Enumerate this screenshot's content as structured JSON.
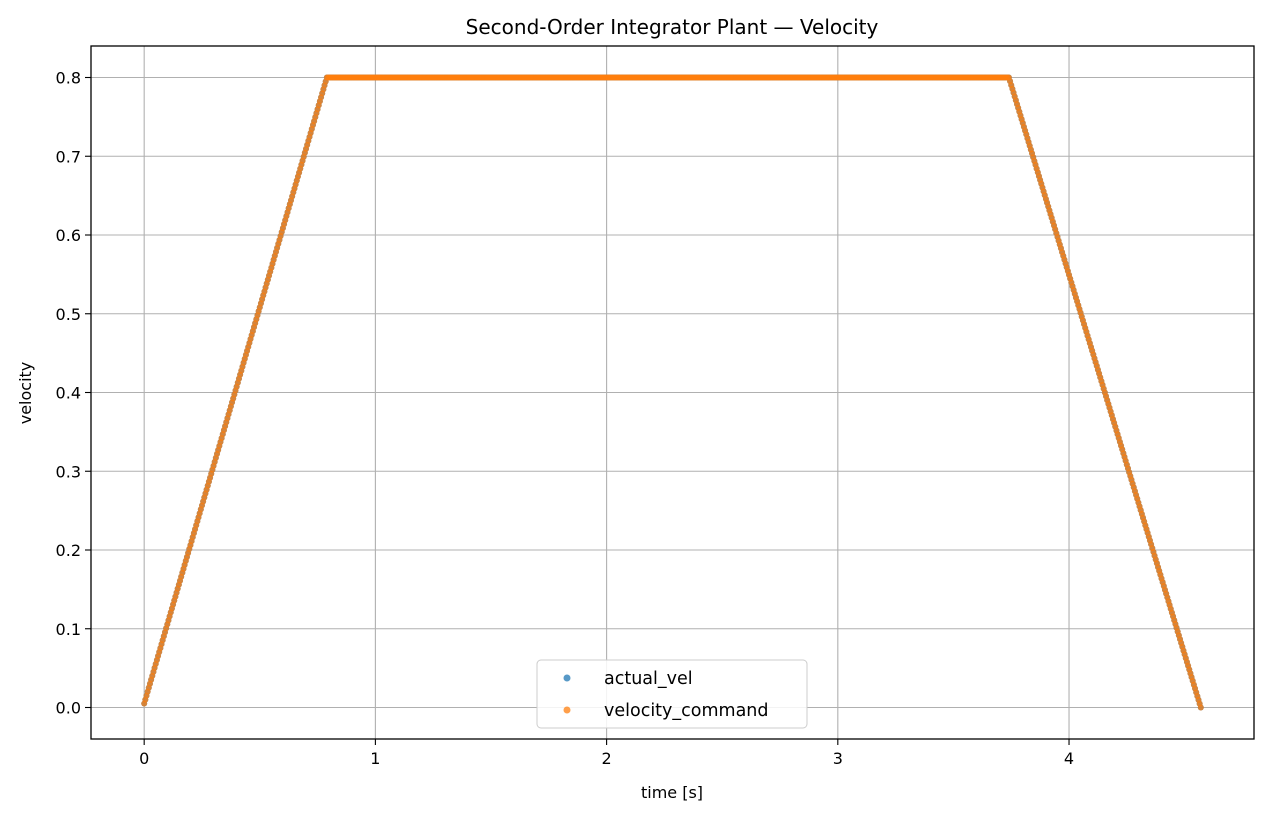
{
  "chart_data": {
    "type": "scatter",
    "title": "Second-Order Integrator Plant — Velocity",
    "xlabel": "time [s]",
    "ylabel": "velocity",
    "xlim": [
      -0.23,
      4.8
    ],
    "ylim": [
      -0.04,
      0.84
    ],
    "xticks": [
      0,
      1,
      2,
      3,
      4
    ],
    "yticks": [
      0.0,
      0.1,
      0.2,
      0.3,
      0.4,
      0.5,
      0.6,
      0.7,
      0.8
    ],
    "xtick_labels": [
      "0",
      "1",
      "2",
      "3",
      "4"
    ],
    "ytick_labels": [
      "0.0",
      "0.1",
      "0.2",
      "0.3",
      "0.4",
      "0.5",
      "0.6",
      "0.7",
      "0.8"
    ],
    "grid": true,
    "legend_position": "bottom-center",
    "colors": {
      "actual_vel": "#1f77b4",
      "velocity_command": "#ff7f0e"
    },
    "series": [
      {
        "name": "actual_vel",
        "x": [
          0.0,
          0.79,
          3.74,
          4.57
        ],
        "y": [
          0.005,
          0.8,
          0.8,
          0.0
        ]
      },
      {
        "name": "velocity_command",
        "x": [
          0.0,
          0.79,
          3.74,
          4.57
        ],
        "y": [
          0.005,
          0.8,
          0.8,
          0.0
        ]
      }
    ]
  }
}
